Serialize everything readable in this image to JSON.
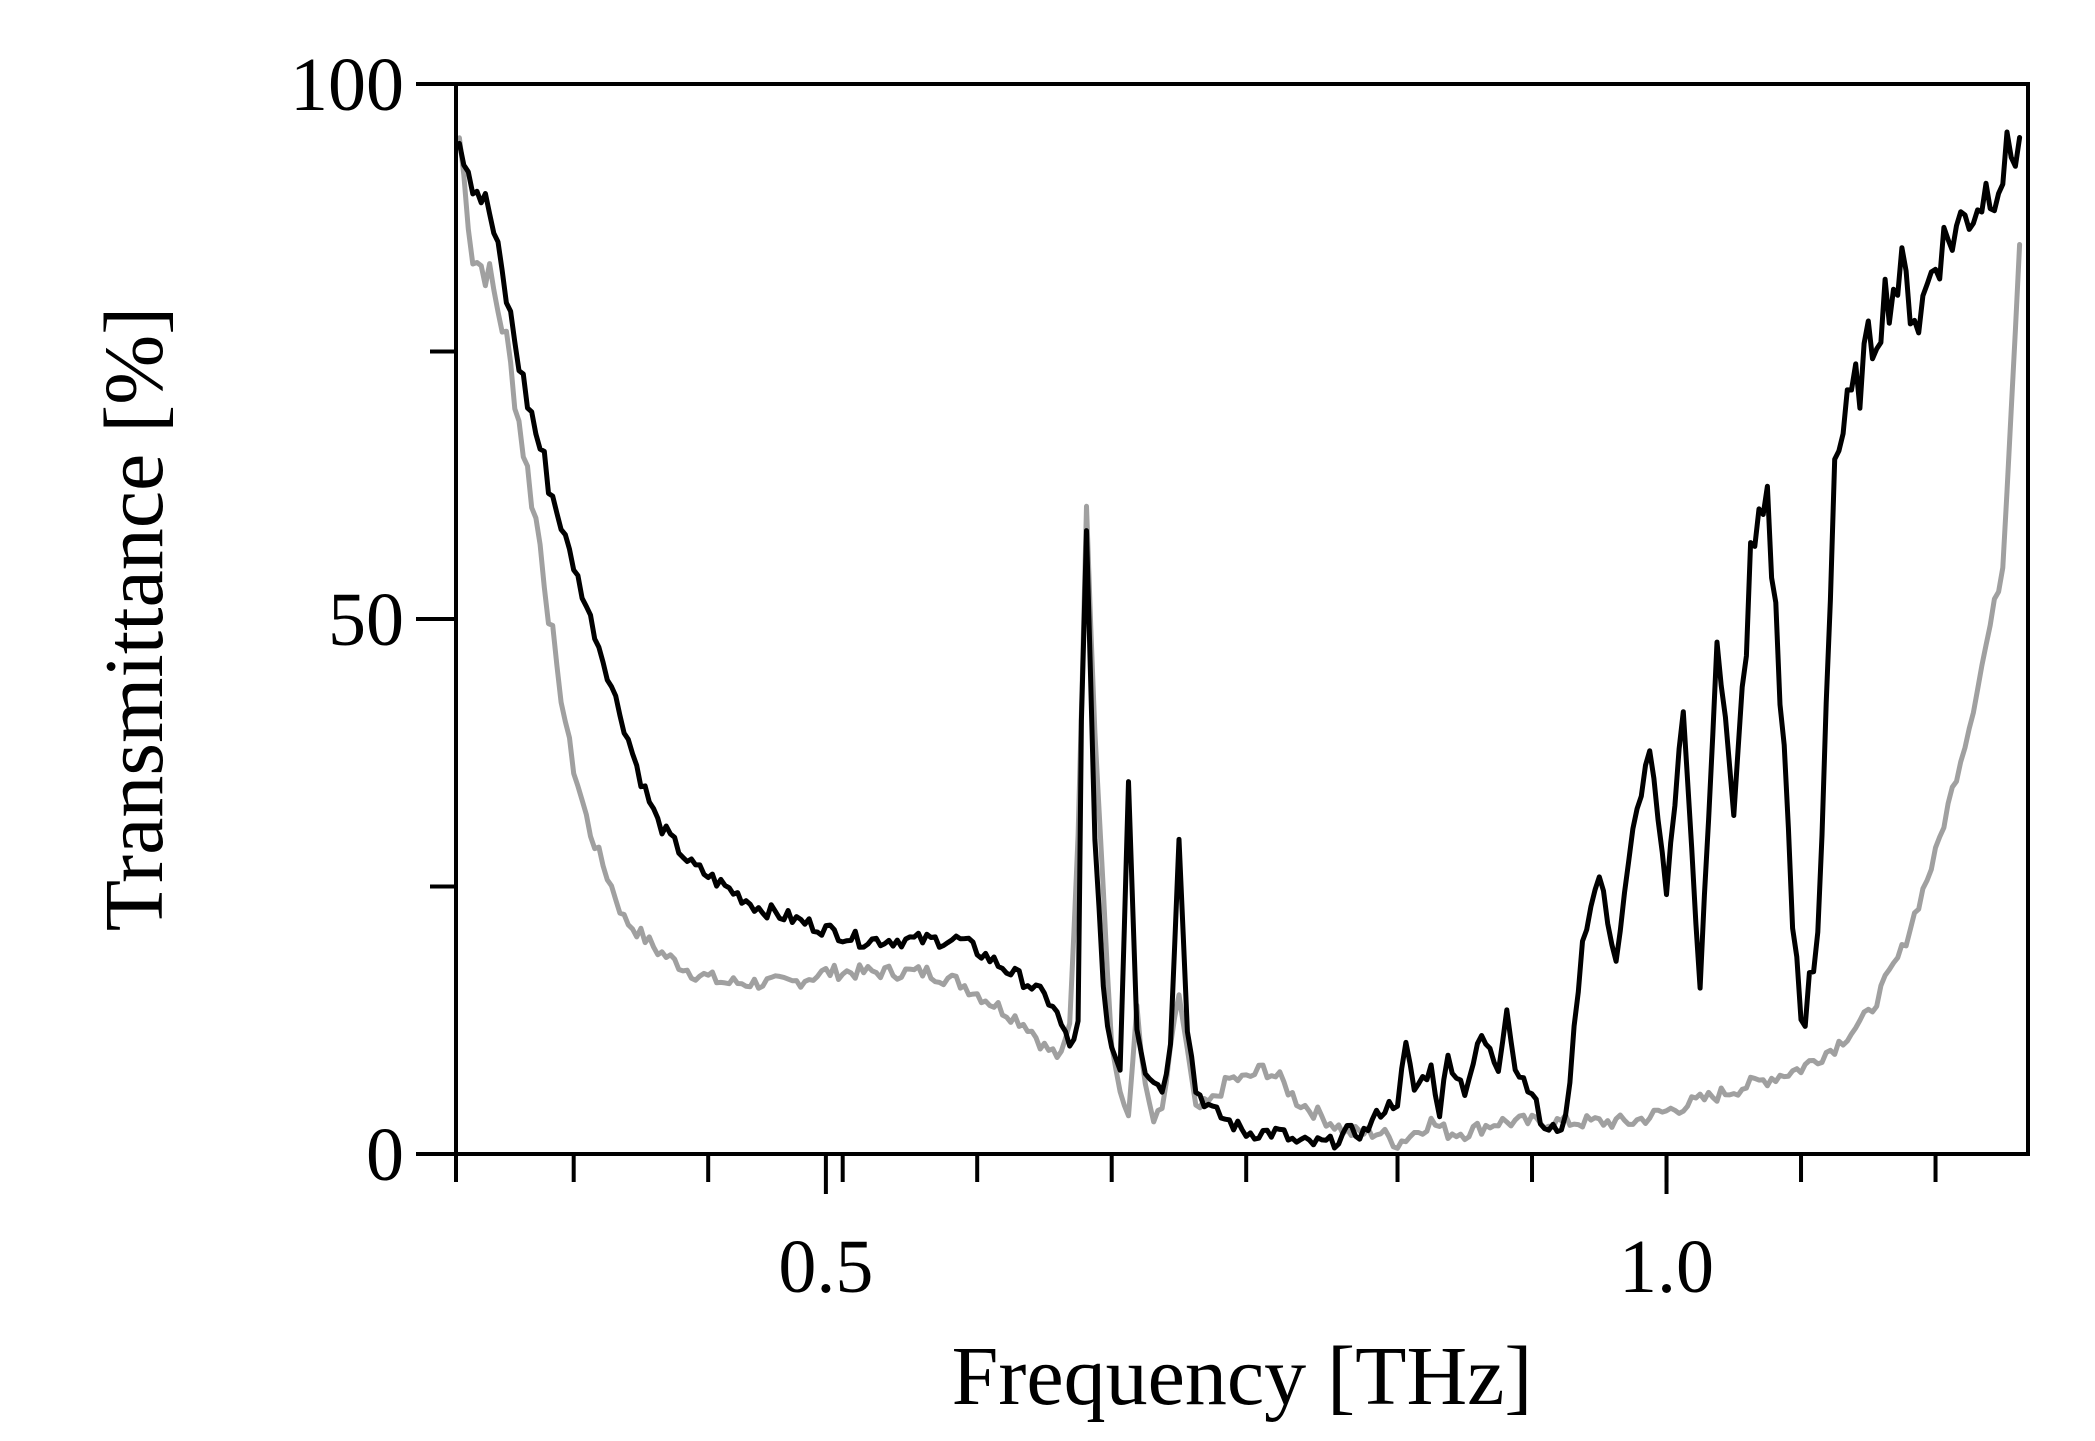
{
  "chart_data": {
    "type": "line",
    "title": "",
    "xlabel": "Frequency [THz]",
    "ylabel": "Transmittance [%]",
    "xlim": [
      0.28,
      1.215
    ],
    "ylim": [
      0,
      100
    ],
    "x_ticks": [
      0.5,
      1.0
    ],
    "x_tick_labels": [
      "0.5",
      "1.0"
    ],
    "x_minor_ticks": [
      0.28,
      0.35,
      0.43,
      0.51,
      0.59,
      0.67,
      0.75,
      0.84,
      0.92,
      1.0,
      1.08,
      1.16
    ],
    "y_ticks": [
      0,
      50,
      100
    ],
    "y_tick_labels": [
      "0",
      "50",
      "100"
    ],
    "y_minor_ticks": [
      25,
      75
    ],
    "grid": false,
    "legend": "none",
    "series": [
      {
        "color": "#a0a0a0",
        "stroke_width": 5,
        "x": [
          0.282,
          0.29,
          0.3,
          0.31,
          0.32,
          0.33,
          0.34,
          0.35,
          0.36,
          0.37,
          0.38,
          0.4,
          0.42,
          0.44,
          0.46,
          0.48,
          0.5,
          0.52,
          0.54,
          0.56,
          0.58,
          0.6,
          0.62,
          0.63,
          0.64,
          0.645,
          0.65,
          0.655,
          0.66,
          0.67,
          0.675,
          0.68,
          0.685,
          0.69,
          0.695,
          0.7,
          0.71,
          0.72,
          0.73,
          0.74,
          0.75,
          0.76,
          0.77,
          0.78,
          0.79,
          0.8,
          0.81,
          0.82,
          0.83,
          0.84,
          0.85,
          0.86,
          0.87,
          0.88,
          0.9,
          0.92,
          0.94,
          0.96,
          0.98,
          1.0,
          1.02,
          1.04,
          1.06,
          1.08,
          1.1,
          1.12,
          1.14,
          1.16,
          1.18,
          1.2,
          1.21
        ],
        "y": [
          95,
          84,
          82,
          76,
          66,
          57,
          45,
          36,
          30,
          26,
          22,
          19,
          17,
          16,
          16,
          16,
          17,
          17,
          17,
          17,
          16,
          14,
          12,
          10,
          9,
          12,
          30,
          60,
          40,
          10,
          6,
          3,
          14,
          6,
          3,
          4,
          15,
          4,
          5,
          7,
          7,
          8,
          7,
          5,
          4,
          3,
          2,
          2,
          2,
          1,
          2,
          3,
          2,
          2,
          3,
          3,
          3,
          3,
          3,
          4,
          5,
          6,
          7,
          8,
          10,
          13,
          19,
          28,
          40,
          55,
          85
        ]
      },
      {
        "color": "#000000",
        "stroke_width": 5,
        "x": [
          0.282,
          0.29,
          0.3,
          0.31,
          0.32,
          0.33,
          0.34,
          0.35,
          0.36,
          0.37,
          0.38,
          0.39,
          0.4,
          0.41,
          0.42,
          0.44,
          0.46,
          0.48,
          0.5,
          0.52,
          0.54,
          0.56,
          0.58,
          0.6,
          0.62,
          0.635,
          0.64,
          0.645,
          0.65,
          0.652,
          0.655,
          0.66,
          0.665,
          0.67,
          0.675,
          0.68,
          0.685,
          0.69,
          0.7,
          0.705,
          0.71,
          0.715,
          0.72,
          0.73,
          0.74,
          0.75,
          0.76,
          0.77,
          0.78,
          0.79,
          0.8,
          0.81,
          0.82,
          0.83,
          0.84,
          0.845,
          0.85,
          0.86,
          0.865,
          0.87,
          0.88,
          0.89,
          0.9,
          0.905,
          0.91,
          0.92,
          0.925,
          0.93,
          0.94,
          0.95,
          0.96,
          0.97,
          0.98,
          0.99,
          1.0,
          1.01,
          1.02,
          1.03,
          1.04,
          1.05,
          1.06,
          1.07,
          1.08,
          1.09,
          1.1,
          1.11,
          1.12,
          1.13,
          1.14,
          1.15,
          1.16,
          1.17,
          1.18,
          1.19,
          1.2,
          1.21
        ],
        "y": [
          95,
          91,
          88,
          80,
          72,
          66,
          60,
          55,
          50,
          45,
          40,
          35,
          31,
          29,
          27,
          25,
          23,
          22,
          21,
          20,
          20,
          20,
          20,
          18,
          16,
          14,
          12,
          10,
          12,
          40,
          58,
          30,
          15,
          10,
          8,
          35,
          12,
          8,
          6,
          10,
          30,
          12,
          6,
          4,
          3,
          2,
          2,
          2,
          1,
          1,
          1,
          2,
          2,
          4,
          5,
          10,
          6,
          8,
          4,
          9,
          6,
          11,
          8,
          14,
          8,
          6,
          3,
          2,
          3,
          20,
          26,
          18,
          30,
          38,
          24,
          42,
          15,
          50,
          30,
          55,
          62,
          37,
          10,
          20,
          65,
          70,
          75,
          80,
          82,
          78,
          84,
          86,
          88,
          90,
          92,
          95
        ]
      }
    ]
  }
}
